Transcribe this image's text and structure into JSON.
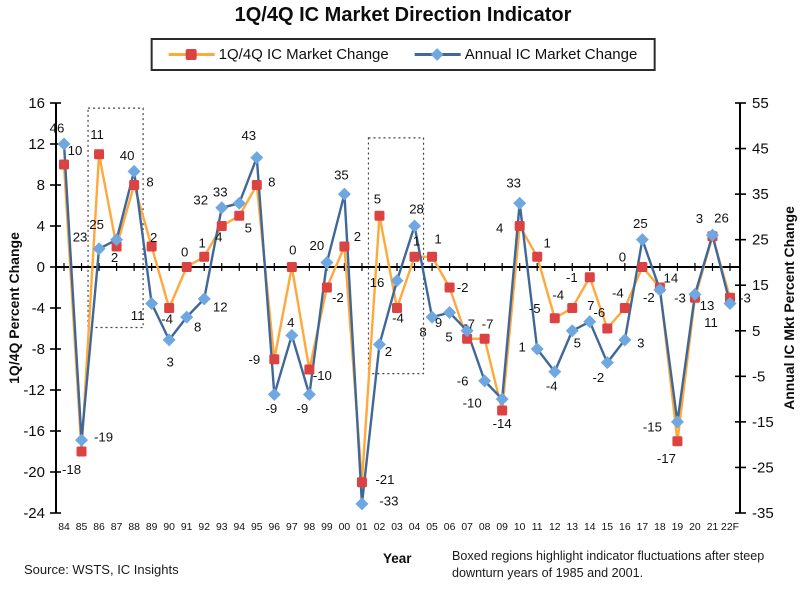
{
  "chart_data": {
    "type": "line",
    "title": "1Q/4Q IC Market Direction Indicator",
    "xlabel": "Year",
    "ylabel_left": "1Q/4Q Percent Change",
    "ylabel_right": "Annual IC Mkt Percent Change",
    "legend_position": "top",
    "grid": false,
    "categories": [
      "84",
      "85",
      "86",
      "87",
      "88",
      "89",
      "90",
      "91",
      "92",
      "93",
      "94",
      "95",
      "96",
      "97",
      "98",
      "99",
      "00",
      "01",
      "02",
      "03",
      "04",
      "05",
      "06",
      "07",
      "08",
      "09",
      "10",
      "11",
      "12",
      "13",
      "14",
      "15",
      "16",
      "17",
      "18",
      "19",
      "20",
      "21",
      "22F"
    ],
    "left_axis": {
      "min": -24,
      "max": 16,
      "ticks": [
        16,
        12,
        8,
        4,
        0,
        -4,
        -8,
        -12,
        -16,
        -20,
        -24
      ]
    },
    "right_axis": {
      "min": -35,
      "max": 55,
      "ticks": [
        55,
        45,
        35,
        25,
        15,
        5,
        -5,
        -15,
        -25,
        -35
      ]
    },
    "series": [
      {
        "name": "1Q/4Q IC Market Change",
        "axis": "left",
        "marker": "square",
        "line_color": "#FFA83C",
        "marker_color": "#DB4242",
        "values": [
          10,
          -18,
          11,
          2,
          8,
          2,
          -4,
          0,
          1,
          4,
          5,
          8,
          -9,
          0,
          -10,
          -2,
          2,
          -21,
          5,
          -4,
          1,
          1,
          -2,
          -7,
          -7,
          -14,
          4,
          1,
          -5,
          -4,
          -1,
          -6,
          -4,
          0,
          -2,
          -17,
          -3,
          3,
          -3
        ],
        "label_offsets": [
          [
            11,
            -14
          ],
          [
            -10,
            18
          ],
          [
            -2,
            -20
          ],
          [
            -2,
            11
          ],
          [
            16,
            -3
          ],
          [
            2,
            -9
          ],
          [
            -2,
            11
          ],
          [
            -2,
            -15
          ],
          [
            -2,
            -14
          ],
          [
            -3,
            11
          ],
          [
            9,
            12
          ],
          [
            15,
            -3
          ],
          [
            -20,
            0
          ],
          [
            1,
            -17
          ],
          [
            13,
            6
          ],
          [
            11,
            10
          ],
          [
            13,
            -10
          ],
          [
            23,
            -3
          ],
          [
            -2,
            -17
          ],
          [
            1,
            10
          ],
          [
            2,
            -16
          ],
          [
            6,
            -18
          ],
          [
            13,
            0
          ],
          [
            2,
            -15
          ],
          [
            3,
            -15
          ],
          [
            0,
            13
          ],
          [
            -20,
            2
          ],
          [
            10,
            -14
          ],
          [
            -20,
            -10
          ],
          [
            -14,
            -13
          ],
          [
            -18,
            0
          ],
          [
            -8,
            -16
          ],
          [
            -7,
            -15
          ],
          [
            -20,
            -10
          ],
          [
            -11,
            10
          ],
          [
            -11,
            17
          ],
          [
            -15,
            0
          ],
          [
            -13,
            -18
          ],
          [
            15,
            0
          ]
        ]
      },
      {
        "name": "Annual IC Market Change",
        "axis": "right",
        "marker": "diamond",
        "line_color": "#3F6899",
        "marker_color": "#6FA8E0",
        "values": [
          46,
          -19,
          23,
          25,
          40,
          11,
          3,
          8,
          12,
          32,
          33,
          43,
          -9,
          4,
          -9,
          20,
          35,
          -33,
          2,
          16,
          28,
          8,
          9,
          5,
          -6,
          -10,
          33,
          1,
          -4,
          5,
          7,
          -2,
          3,
          25,
          14,
          -15,
          13,
          26,
          11
        ],
        "label_offsets": [
          [
            -7,
            -16
          ],
          [
            22,
            -3
          ],
          [
            -19,
            -12
          ],
          [
            -20,
            -15
          ],
          [
            -7,
            -16
          ],
          [
            -14,
            12
          ],
          [
            1,
            22
          ],
          [
            11,
            10
          ],
          [
            16,
            8
          ],
          [
            -21,
            -8
          ],
          [
            -19,
            -11
          ],
          [
            -8,
            -22
          ],
          [
            -3,
            14
          ],
          [
            -1,
            -13
          ],
          [
            -7,
            14
          ],
          [
            -10,
            -17
          ],
          [
            -3,
            -19
          ],
          [
            27,
            -3
          ],
          [
            9,
            7
          ],
          [
            -20,
            2
          ],
          [
            2,
            -17
          ],
          [
            -9,
            15
          ],
          [
            -11,
            10
          ],
          [
            -18,
            6
          ],
          [
            -22,
            0
          ],
          [
            -30,
            4
          ],
          [
            -6,
            -20
          ],
          [
            -15,
            -2
          ],
          [
            -3,
            14
          ],
          [
            5,
            12
          ],
          [
            1,
            -16
          ],
          [
            -9,
            15
          ],
          [
            16,
            3
          ],
          [
            -2,
            -16
          ],
          [
            11,
            -12
          ],
          [
            -25,
            5
          ],
          [
            12,
            11
          ],
          [
            9,
            -17
          ],
          [
            -19,
            19
          ]
        ]
      }
    ],
    "boxed_regions": [
      {
        "from": "86",
        "to": "88",
        "top_value": 15.5,
        "bottom_value": -5.9
      },
      {
        "from": "02",
        "to": "04",
        "top_value": 12.6,
        "bottom_value": -10.4
      }
    ]
  },
  "footer": {
    "source": "Source: WSTS, IC Insights",
    "note": "Boxed regions highlight indicator fluctuations after steep downturn years of 1985 and 2001."
  },
  "colors": {
    "orange_line": "#FFA83C",
    "red_marker": "#DB4242",
    "blue_line": "#3F6899",
    "blue_marker": "#6FA8E0",
    "axis": "#1a1a1a",
    "box_outline": "#444444"
  }
}
